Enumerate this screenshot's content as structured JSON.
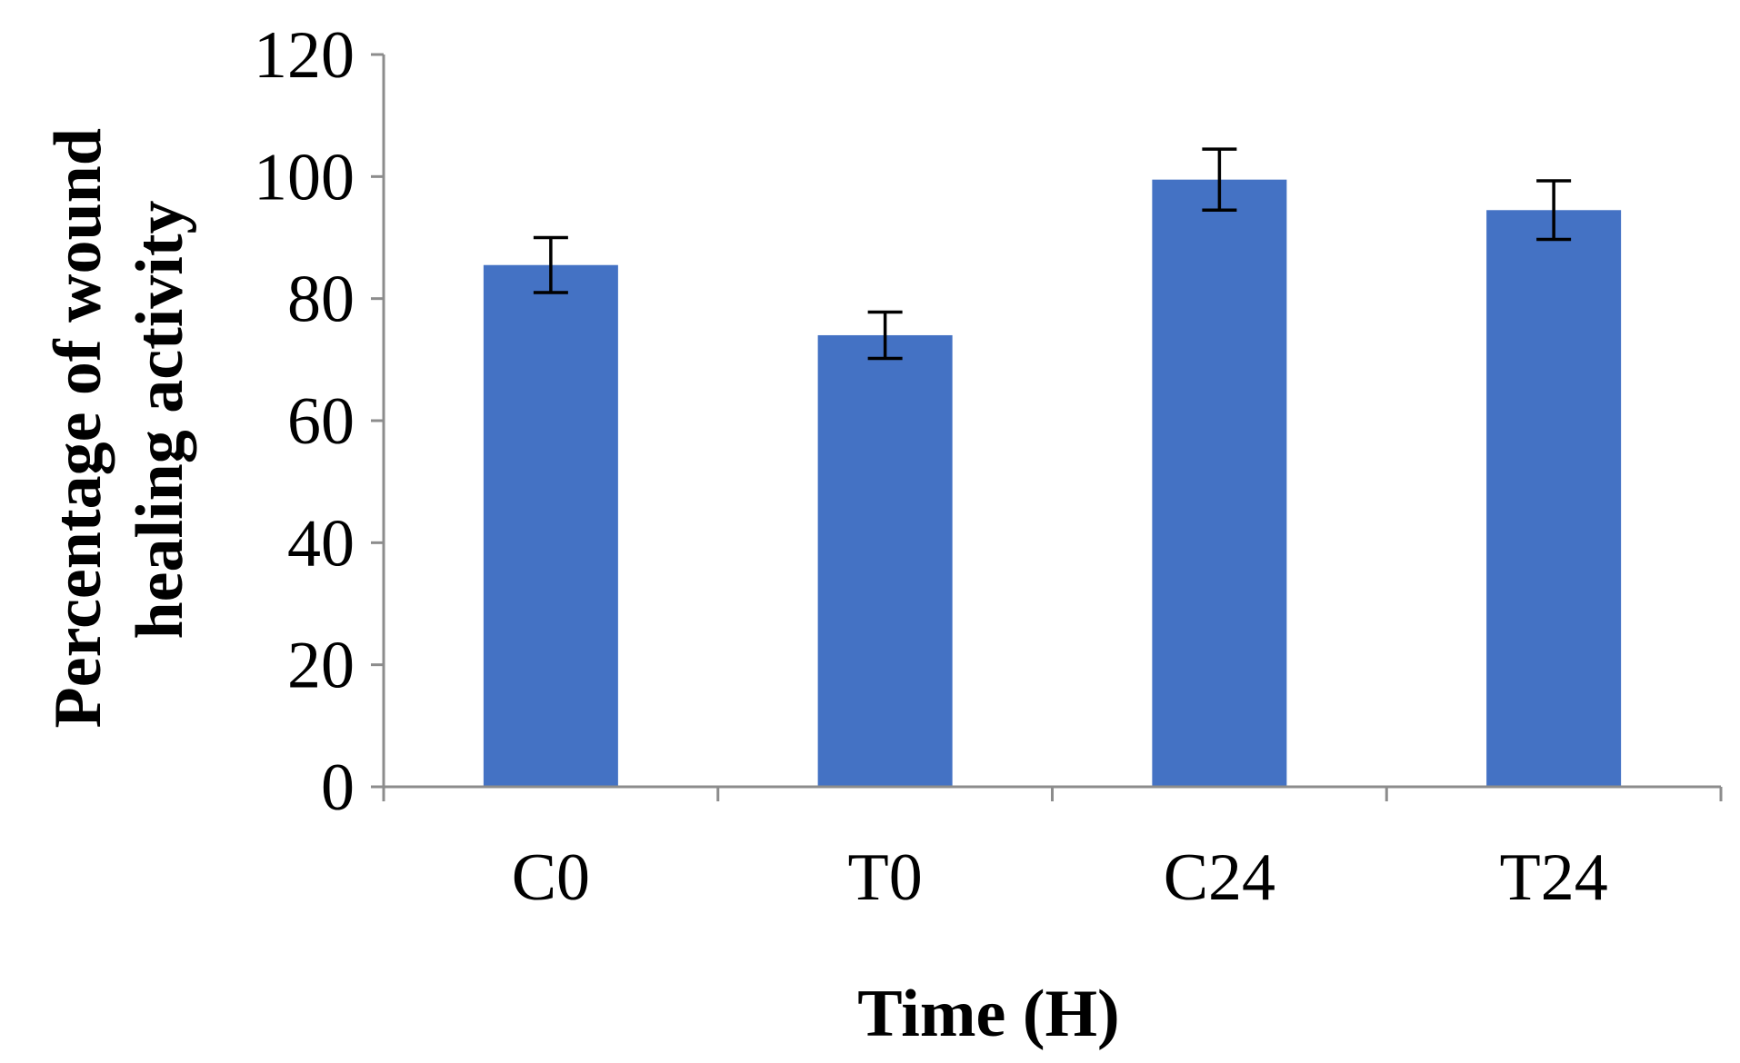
{
  "chart_data": {
    "type": "bar",
    "title": "",
    "xlabel": "Time (H)",
    "ylabel_lines": [
      "Percentage of wound",
      "healing activity"
    ],
    "categories": [
      "C0",
      "T0",
      "C24",
      "T24"
    ],
    "values": [
      85.5,
      74,
      99.5,
      94.5
    ],
    "error": [
      4.5,
      3.8,
      5,
      4.8
    ],
    "ylim": [
      0,
      120
    ],
    "yticks": [
      "0",
      "20",
      "40",
      "60",
      "80",
      "100",
      "120"
    ],
    "ytick_values": [
      0,
      20,
      40,
      60,
      80,
      100,
      120
    ],
    "grid": false,
    "legend": "none",
    "colors": {
      "bar": "#4472C4",
      "axis": "#8C8C8C",
      "error_bar": "#000000",
      "text": "#000000"
    }
  }
}
